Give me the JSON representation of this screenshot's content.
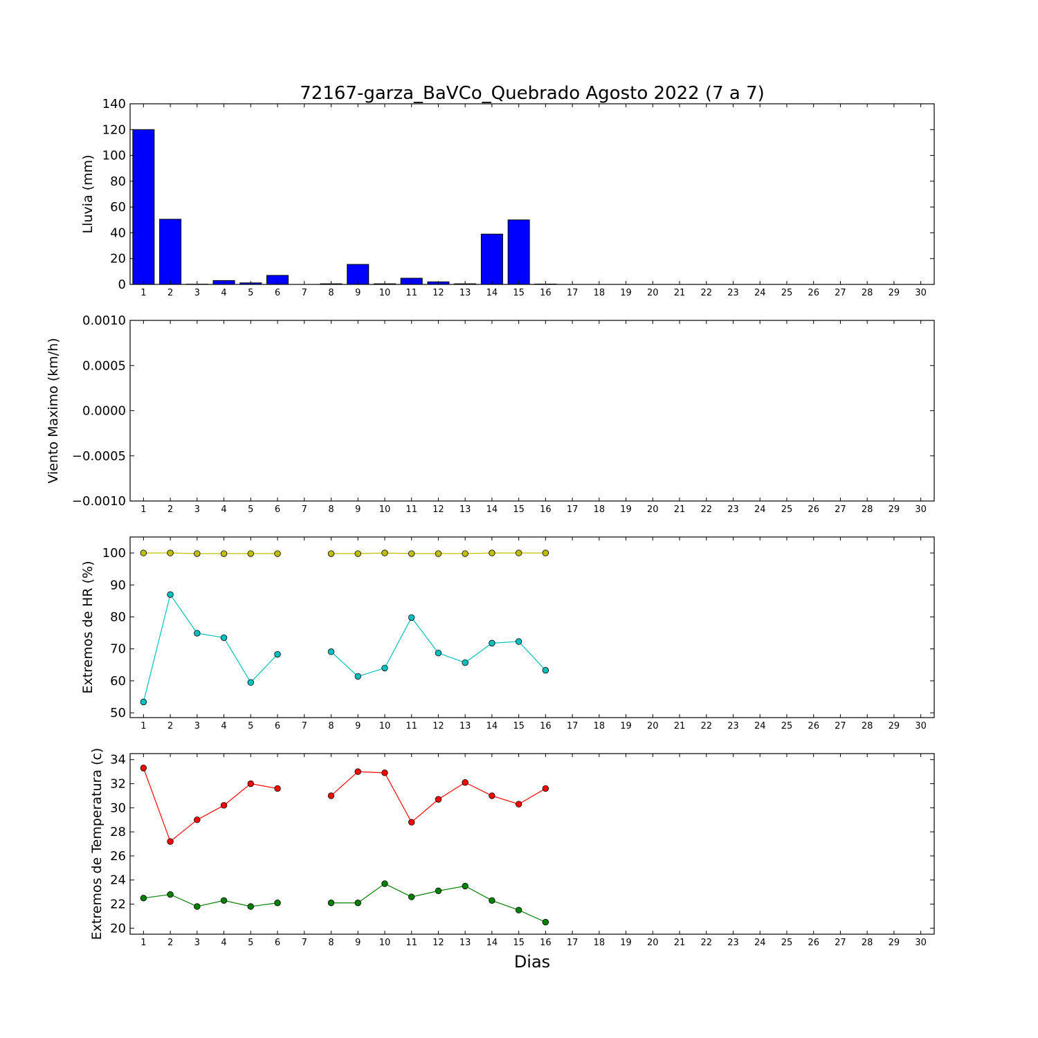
{
  "figure": {
    "title": "72167-garza_BaVCo_Quebrado Agosto 2022  (7 a 7)",
    "xlabel": "Dias"
  },
  "chart_data": [
    {
      "type": "bar",
      "ylabel": "Lluvia (mm)",
      "xlim": [
        0.5,
        30.5
      ],
      "ylim": [
        0,
        140
      ],
      "yticks": [
        0,
        20,
        40,
        60,
        80,
        100,
        120,
        140
      ],
      "xticks": [
        1,
        2,
        3,
        4,
        5,
        6,
        7,
        8,
        9,
        10,
        11,
        12,
        13,
        14,
        15,
        16,
        17,
        18,
        19,
        20,
        21,
        22,
        23,
        24,
        25,
        26,
        27,
        28,
        29,
        30
      ],
      "color": "#0000ff",
      "x": [
        1,
        2,
        3,
        4,
        5,
        6,
        7,
        8,
        9,
        10,
        11,
        12,
        13,
        14,
        15,
        16
      ],
      "values": [
        120,
        50.5,
        0.2,
        3,
        1.2,
        7,
        0,
        0.5,
        15.5,
        0.5,
        4.8,
        2,
        0.5,
        39,
        50,
        0.3
      ]
    },
    {
      "type": "line",
      "ylabel": "Viento Maximo (km/h)",
      "xlim": [
        0.5,
        30.5
      ],
      "ylim": [
        -0.001,
        0.001
      ],
      "yticks": [
        -0.001,
        -0.0005,
        0.0,
        0.0005,
        0.001
      ],
      "ytick_labels": [
        "−0.0010",
        "−0.0005",
        "0.0000",
        "0.0005",
        "0.0010"
      ],
      "xticks": [
        1,
        2,
        3,
        4,
        5,
        6,
        7,
        8,
        9,
        10,
        11,
        12,
        13,
        14,
        15,
        16,
        17,
        18,
        19,
        20,
        21,
        22,
        23,
        24,
        25,
        26,
        27,
        28,
        29,
        30
      ],
      "series": []
    },
    {
      "type": "line",
      "ylabel": "Extremos de HR (%)",
      "xlim": [
        0.5,
        30.5
      ],
      "ylim": [
        48.5,
        105
      ],
      "yticks": [
        50,
        60,
        70,
        80,
        90,
        100
      ],
      "xticks": [
        1,
        2,
        3,
        4,
        5,
        6,
        7,
        8,
        9,
        10,
        11,
        12,
        13,
        14,
        15,
        16,
        17,
        18,
        19,
        20,
        21,
        22,
        23,
        24,
        25,
        26,
        27,
        28,
        29,
        30
      ],
      "x": [
        1,
        2,
        3,
        4,
        5,
        6,
        7,
        8,
        9,
        10,
        11,
        12,
        13,
        14,
        15,
        16
      ],
      "series": [
        {
          "color": "#bfbf00",
          "values": [
            100,
            100,
            99.8,
            99.8,
            99.8,
            99.8,
            null,
            99.8,
            99.8,
            100,
            99.8,
            99.8,
            99.8,
            100,
            100,
            100
          ]
        },
        {
          "color": "#00bfbf",
          "values": [
            53.4,
            87,
            74.9,
            73.5,
            59.5,
            68.3,
            null,
            69.1,
            61.4,
            64,
            79.8,
            68.7,
            65.7,
            71.8,
            72.3,
            63.3
          ]
        }
      ]
    },
    {
      "type": "line",
      "ylabel": "Extremos de Temperatura (c)",
      "xlim": [
        0.5,
        30.5
      ],
      "ylim": [
        19.5,
        34.5
      ],
      "yticks": [
        20,
        22,
        24,
        26,
        28,
        30,
        32,
        34
      ],
      "xticks": [
        1,
        2,
        3,
        4,
        5,
        6,
        7,
        8,
        9,
        10,
        11,
        12,
        13,
        14,
        15,
        16,
        17,
        18,
        19,
        20,
        21,
        22,
        23,
        24,
        25,
        26,
        27,
        28,
        29,
        30
      ],
      "x": [
        1,
        2,
        3,
        4,
        5,
        6,
        7,
        8,
        9,
        10,
        11,
        12,
        13,
        14,
        15,
        16
      ],
      "series": [
        {
          "color": "#ff0000",
          "values": [
            33.3,
            27.2,
            29,
            30.2,
            32,
            31.6,
            null,
            31,
            33,
            32.9,
            28.8,
            30.7,
            32.1,
            31,
            30.3,
            31.6
          ]
        },
        {
          "color": "#008000",
          "values": [
            22.5,
            22.8,
            21.8,
            22.3,
            21.8,
            22.1,
            null,
            22.1,
            22.1,
            23.7,
            22.6,
            23.1,
            23.5,
            22.3,
            21.5,
            20.5
          ]
        }
      ]
    }
  ]
}
